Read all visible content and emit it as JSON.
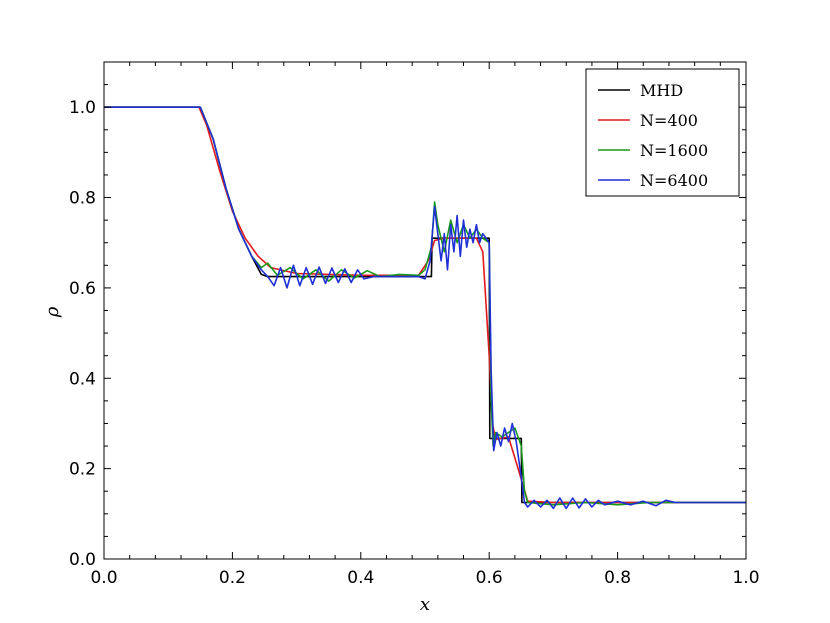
{
  "chart_data": {
    "type": "line",
    "xlabel": "x",
    "ylabel": "ρ",
    "xlim": [
      0.0,
      1.0
    ],
    "ylim": [
      0.0,
      1.1
    ],
    "xticks": [
      "0.0",
      "0.2",
      "0.4",
      "0.6",
      "0.8",
      "1.0"
    ],
    "yticks": [
      "0.0",
      "0.2",
      "0.4",
      "0.6",
      "0.8",
      "1.0"
    ],
    "grid": false,
    "legend_position": "top-right",
    "series": [
      {
        "name": "MHD",
        "color": "#000000",
        "x": [
          0.0,
          0.147,
          0.15,
          0.17,
          0.19,
          0.21,
          0.23,
          0.245,
          0.255,
          0.5,
          0.51,
          0.511,
          0.6,
          0.601,
          0.61,
          0.611,
          0.65,
          0.651,
          1.0
        ],
        "y": [
          1.0,
          1.0,
          1.0,
          0.93,
          0.82,
          0.73,
          0.67,
          0.63,
          0.625,
          0.625,
          0.625,
          0.71,
          0.71,
          0.267,
          0.267,
          0.267,
          0.267,
          0.125,
          0.125
        ]
      },
      {
        "name": "N=400",
        "color": "#e31a1c",
        "x": [
          0.0,
          0.148,
          0.16,
          0.18,
          0.2,
          0.22,
          0.24,
          0.26,
          0.3,
          0.4,
          0.49,
          0.505,
          0.515,
          0.53,
          0.58,
          0.59,
          0.6,
          0.605,
          0.61,
          0.63,
          0.645,
          0.66,
          0.7,
          1.0
        ],
        "y": [
          1.0,
          1.0,
          0.96,
          0.86,
          0.77,
          0.71,
          0.67,
          0.645,
          0.632,
          0.628,
          0.628,
          0.66,
          0.705,
          0.71,
          0.71,
          0.68,
          0.45,
          0.3,
          0.265,
          0.27,
          0.2,
          0.128,
          0.125,
          0.125
        ]
      },
      {
        "name": "N=1600",
        "color": "#1a9a1a",
        "x": [
          0.0,
          0.15,
          0.17,
          0.19,
          0.21,
          0.23,
          0.245,
          0.255,
          0.27,
          0.29,
          0.31,
          0.33,
          0.35,
          0.37,
          0.39,
          0.41,
          0.43,
          0.46,
          0.49,
          0.5,
          0.51,
          0.515,
          0.52,
          0.53,
          0.54,
          0.55,
          0.56,
          0.57,
          0.58,
          0.59,
          0.6,
          0.603,
          0.606,
          0.61,
          0.62,
          0.63,
          0.64,
          0.65,
          0.655,
          0.66,
          0.7,
          0.75,
          0.8,
          0.85,
          0.88,
          1.0
        ],
        "y": [
          1.0,
          1.0,
          0.93,
          0.82,
          0.73,
          0.67,
          0.645,
          0.655,
          0.628,
          0.645,
          0.62,
          0.64,
          0.615,
          0.64,
          0.622,
          0.638,
          0.625,
          0.63,
          0.628,
          0.64,
          0.69,
          0.79,
          0.74,
          0.68,
          0.75,
          0.7,
          0.74,
          0.71,
          0.73,
          0.71,
          0.7,
          0.35,
          0.25,
          0.28,
          0.27,
          0.28,
          0.29,
          0.25,
          0.15,
          0.125,
          0.12,
          0.125,
          0.12,
          0.125,
          0.125,
          0.125
        ]
      },
      {
        "name": "N=6400",
        "color": "#1f2fd6",
        "x": [
          0.0,
          0.15,
          0.17,
          0.19,
          0.21,
          0.23,
          0.245,
          0.255,
          0.265,
          0.275,
          0.285,
          0.295,
          0.305,
          0.315,
          0.325,
          0.335,
          0.345,
          0.355,
          0.365,
          0.375,
          0.385,
          0.395,
          0.405,
          0.42,
          0.45,
          0.49,
          0.5,
          0.508,
          0.515,
          0.52,
          0.525,
          0.53,
          0.535,
          0.54,
          0.545,
          0.55,
          0.555,
          0.56,
          0.565,
          0.57,
          0.575,
          0.58,
          0.585,
          0.59,
          0.6,
          0.603,
          0.607,
          0.612,
          0.618,
          0.624,
          0.63,
          0.636,
          0.642,
          0.65,
          0.655,
          0.66,
          0.67,
          0.68,
          0.69,
          0.7,
          0.71,
          0.72,
          0.73,
          0.74,
          0.75,
          0.76,
          0.77,
          0.78,
          0.8,
          0.82,
          0.84,
          0.86,
          0.875,
          0.89,
          1.0
        ],
        "y": [
          1.0,
          1.0,
          0.93,
          0.82,
          0.73,
          0.67,
          0.64,
          0.625,
          0.605,
          0.645,
          0.6,
          0.65,
          0.605,
          0.645,
          0.608,
          0.646,
          0.61,
          0.644,
          0.612,
          0.642,
          0.612,
          0.64,
          0.62,
          0.625,
          0.625,
          0.625,
          0.62,
          0.66,
          0.78,
          0.72,
          0.66,
          0.72,
          0.64,
          0.74,
          0.68,
          0.76,
          0.67,
          0.75,
          0.69,
          0.73,
          0.7,
          0.74,
          0.7,
          0.72,
          0.7,
          0.42,
          0.24,
          0.28,
          0.25,
          0.29,
          0.26,
          0.3,
          0.26,
          0.18,
          0.125,
          0.115,
          0.13,
          0.115,
          0.13,
          0.112,
          0.135,
          0.112,
          0.135,
          0.113,
          0.133,
          0.115,
          0.13,
          0.12,
          0.128,
          0.12,
          0.128,
          0.118,
          0.13,
          0.125,
          0.125
        ]
      }
    ]
  }
}
